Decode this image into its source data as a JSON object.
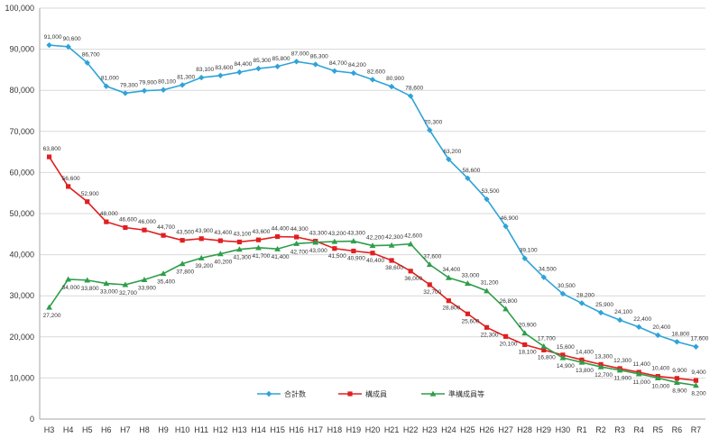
{
  "chart_data": {
    "type": "line",
    "title": "",
    "xlabel": "",
    "ylabel": "",
    "ylim": [
      0,
      100000
    ],
    "yticks": [
      0,
      10000,
      20000,
      30000,
      40000,
      50000,
      60000,
      70000,
      80000,
      90000,
      100000
    ],
    "ytick_labels": [
      "0",
      "10,000",
      "20,000",
      "30,000",
      "40,000",
      "50,000",
      "60,000",
      "70,000",
      "80,000",
      "90,000",
      "100,000"
    ],
    "grid": true,
    "legend_position": "bottom-center",
    "categories": [
      "H3",
      "H4",
      "H5",
      "H6",
      "H7",
      "H8",
      "H9",
      "H10",
      "H11",
      "H12",
      "H13",
      "H14",
      "H15",
      "H16",
      "H17",
      "H18",
      "H19",
      "H20",
      "H21",
      "H22",
      "H23",
      "H24",
      "H25",
      "H26",
      "H27",
      "H28",
      "H29",
      "H30",
      "R1",
      "R2",
      "R3",
      "R4",
      "R5",
      "R6",
      "R7"
    ],
    "series": [
      {
        "name": "合計数",
        "color": "#2ea3d8",
        "marker": "diamond",
        "values": [
          91000,
          90600,
          86700,
          81000,
          79300,
          79900,
          80100,
          81300,
          83100,
          83600,
          84400,
          85300,
          85800,
          87000,
          86300,
          84700,
          84200,
          82600,
          80900,
          78600,
          70300,
          63200,
          58600,
          53500,
          46900,
          39100,
          34500,
          30500,
          28200,
          25900,
          24100,
          22400,
          20400,
          18800,
          17600
        ],
        "labels": [
          "91,000",
          "90,600",
          "86,700",
          "81,000",
          "79,300",
          "79,900",
          "80,100",
          "81,300",
          "83,100",
          "83,600",
          "84,400",
          "85,300",
          "85,800",
          "87,000",
          "86,300",
          "84,700",
          "84,200",
          "82,600",
          "80,900",
          "78,600",
          "70,300",
          "63,200",
          "58,600",
          "53,500",
          "46,900",
          "39,100",
          "34,500",
          "30,500",
          "28,200",
          "25,900",
          "24,100",
          "22,400",
          "20,400",
          "18,800",
          "17,600"
        ]
      },
      {
        "name": "構成員",
        "color": "#e02020",
        "marker": "square",
        "values": [
          63800,
          56600,
          52900,
          48000,
          46600,
          46000,
          44700,
          43500,
          43900,
          43400,
          43100,
          43600,
          44400,
          44300,
          43300,
          41500,
          40900,
          40400,
          38600,
          36000,
          32700,
          28800,
          25600,
          22300,
          20100,
          18100,
          16800,
          15600,
          14400,
          13300,
          12300,
          11400,
          10400,
          9900,
          9400
        ],
        "labels": [
          "63,800",
          "56,600",
          "52,900",
          "48,000",
          "46,600",
          "46,000",
          "44,700",
          "43,500",
          "43,900",
          "43,400",
          "43,100",
          "43,600",
          "44,400",
          "44,300",
          "43,300",
          "41,500",
          "40,900",
          "40,400",
          "38,600",
          "36,000",
          "32,700",
          "28,800",
          "25,600",
          "22,300",
          "20,100",
          "18,100",
          "16,800",
          "15,600",
          "14,400",
          "13,300",
          "12,300",
          "11,400",
          "10,400",
          "9,900",
          "9,400"
        ]
      },
      {
        "name": "準構成員等",
        "color": "#2e9e4a",
        "marker": "triangle",
        "values": [
          27200,
          34000,
          33800,
          33000,
          32700,
          33900,
          35400,
          37800,
          39200,
          40200,
          41300,
          41700,
          41400,
          42700,
          43000,
          43200,
          43300,
          42200,
          42300,
          42600,
          37600,
          34400,
          33000,
          31200,
          26800,
          20900,
          17700,
          14900,
          13800,
          12700,
          11900,
          11000,
          10000,
          8900,
          8200
        ],
        "labels": [
          "27,200",
          "34,000",
          "33,800",
          "33,000",
          "32,700",
          "33,900",
          "35,400",
          "37,800",
          "39,200",
          "40,200",
          "41,300",
          "41,700",
          "41,400",
          "42,700",
          "43,000",
          "43,200",
          "43,300",
          "42,200",
          "42,300",
          "42,600",
          "37,600",
          "34,400",
          "33,000",
          "31,200",
          "26,800",
          "20,900",
          "17,700",
          "14,900",
          "13,800",
          "12,700",
          "11,900",
          "11,000",
          "10,000",
          "8,900",
          "8,200"
        ]
      }
    ]
  }
}
